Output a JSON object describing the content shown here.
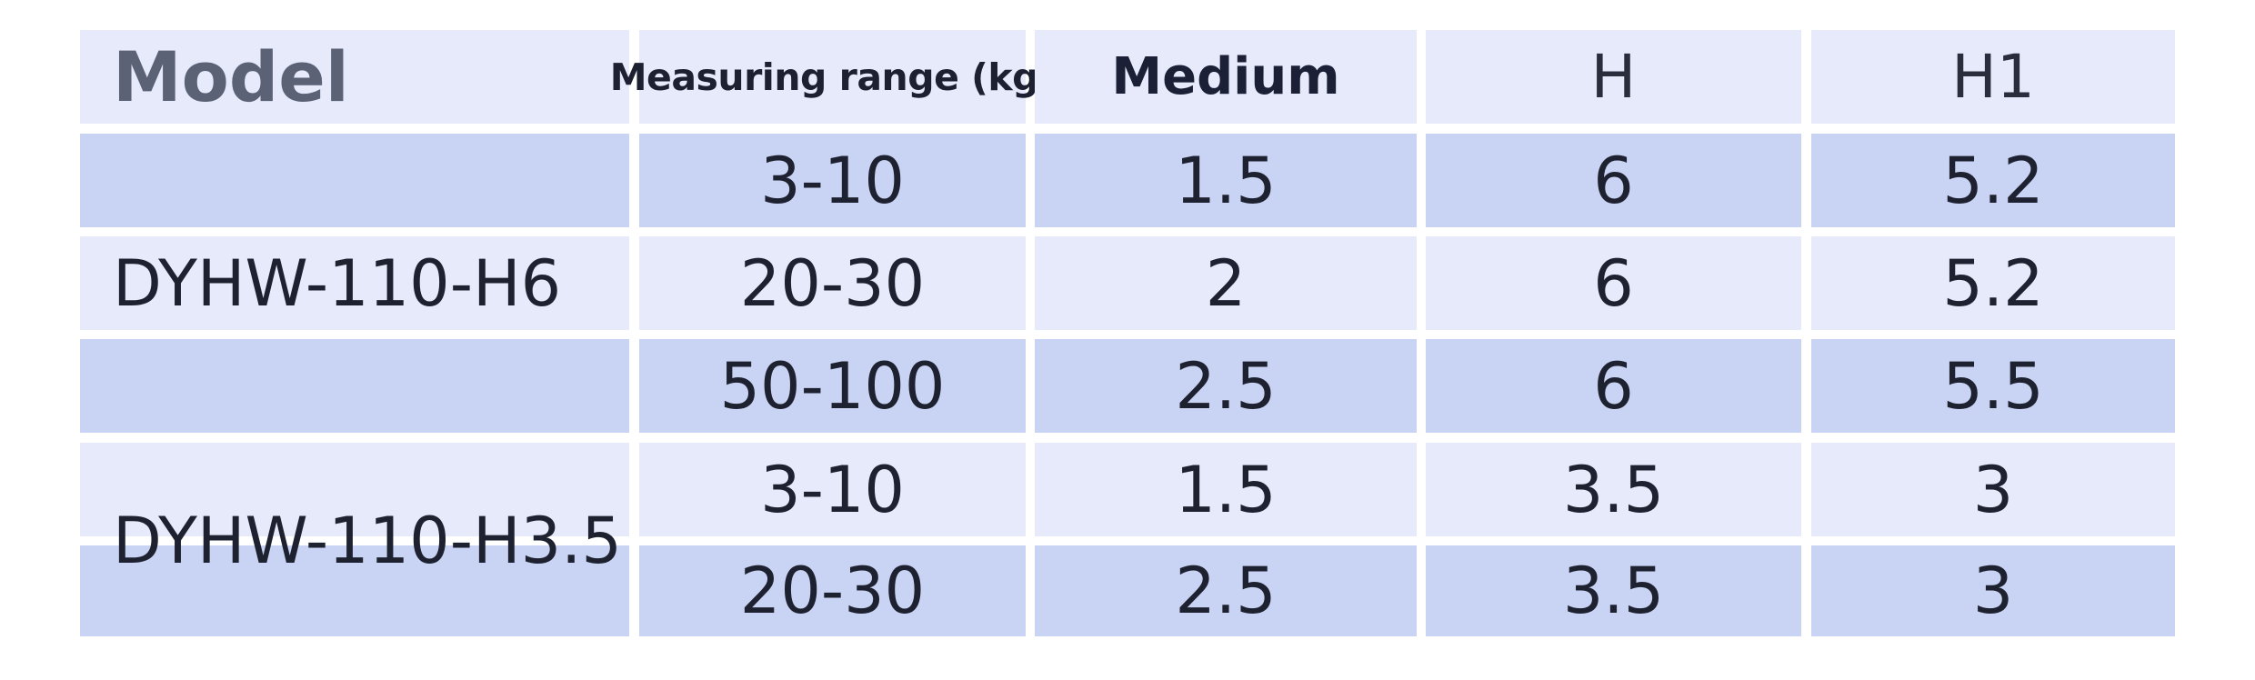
{
  "table": {
    "headers": {
      "model": "Model",
      "range": "Measuring range (kg)",
      "medium": "Medium",
      "h": "H",
      "h1": "H1"
    },
    "models": [
      "DYHW-110-H6",
      "DYHW-110-H3.5"
    ],
    "rows": [
      {
        "range": "3-10",
        "medium": "1.5",
        "h": "6",
        "h1": "5.2"
      },
      {
        "range": "20-30",
        "medium": "2",
        "h": "6",
        "h1": "5.2"
      },
      {
        "range": "50-100",
        "medium": "2.5",
        "h": "6",
        "h1": "5.5"
      },
      {
        "range": "3-10",
        "medium": "1.5",
        "h": "3.5",
        "h1": "3"
      },
      {
        "range": "20-30",
        "medium": "2.5",
        "h": "3.5",
        "h1": "3"
      }
    ]
  },
  "colors": {
    "light_row": "#e6eafa",
    "dark_row": "#c9d3f4",
    "grid_line": "#ffffff"
  }
}
